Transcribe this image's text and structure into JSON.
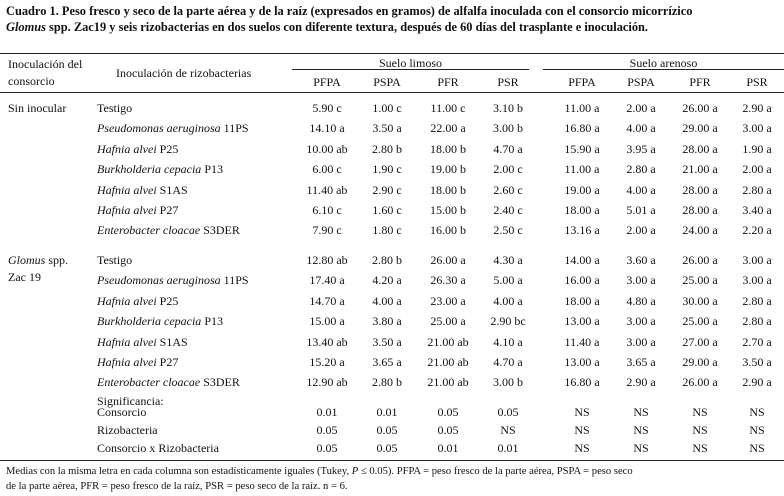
{
  "caption": {
    "line1": "Cuadro 1. Peso fresco y seco de la parte aérea y de la raíz (expresados en gramos) de alfalfa inoculada con el consorcio micorrízico",
    "line2_genus": "Glomus",
    "line2_rest": " spp. Zac19 y seis rizobacterias en dos suelos con diferente textura, después de 60 días del trasplante e inoculación."
  },
  "header": {
    "col1_line1": "Inoculación del",
    "col1_line2": "consorcio",
    "col2": "Inoculación de rizobacterias",
    "group1": "Suelo limoso",
    "group2": "Suelo arenoso",
    "vars": [
      "PFPA",
      "PSPA",
      "PFR",
      "PSR",
      "PFPA",
      "PSPA",
      "PFR",
      "PSR"
    ]
  },
  "groups": [
    {
      "label_line1": "Sin inocular",
      "label_line2": "",
      "rows": [
        {
          "name": "Testigo",
          "suffix": "",
          "values": [
            "5.90 c",
            "1.00 c",
            "11.00 c",
            "3.10 b",
            "11.00 a",
            "2.00 a",
            "26.00 a",
            "2.90 a"
          ]
        },
        {
          "name": "Pseudomonas aeruginosa",
          "suffix": "11PS",
          "values": [
            "14.10 a",
            "3.50 a",
            "22.00 a",
            "3.00 b",
            "16.80 a",
            "4.00 a",
            "29.00 a",
            "3.00 a"
          ]
        },
        {
          "name": "Hafnia alvei",
          "suffix": "P25",
          "values": [
            "10.00 ab",
            "2.80 b",
            "18.00 b",
            "4.70 a",
            "15.90 a",
            "3.95 a",
            "28.00 a",
            "1.90 a"
          ]
        },
        {
          "name": "Burkholderia cepacia",
          "suffix": "P13",
          "values": [
            "6.00 c",
            "1.90 c",
            "19.00 b",
            "2.00 c",
            "11.00 a",
            "2.80 a",
            "21.00 a",
            "2.00 a"
          ]
        },
        {
          "name": "Hafnia alvei",
          "suffix": "S1AS",
          "values": [
            "11.40 ab",
            "2.90 c",
            "18.00 b",
            "2.60 c",
            "19.00 a",
            "4.00 a",
            "28.00 a",
            "2.80 a"
          ]
        },
        {
          "name": "Hafnia alvei",
          "suffix": "P27",
          "values": [
            "6.10 c",
            "1.60 c",
            "15.00 b",
            "2.40 c",
            "18.00 a",
            "5.01 a",
            "28.00 a",
            "3.40 a"
          ]
        },
        {
          "name": "Enterobacter cloacae",
          "suffix": "S3DER",
          "values": [
            "7.90 c",
            "1.80 c",
            "16.00 b",
            "2.50 c",
            "13.16 a",
            "2.00 a",
            "24.00 a",
            "2.20 a"
          ]
        }
      ]
    },
    {
      "label_line1": "Glomus spp.",
      "label_line2": "Zac 19",
      "rows": [
        {
          "name": "Testigo",
          "suffix": "",
          "values": [
            "12.80 ab",
            "2.80 b",
            "26.00 a",
            "4.30 a",
            "14.00 a",
            "3.60 a",
            "26.00 a",
            "3.00 a"
          ]
        },
        {
          "name": "Pseudomonas aeruginosa",
          "suffix": "11PS",
          "values": [
            "17.40 a",
            "4.20 a",
            "26.30 a",
            "5.00 a",
            "16.00 a",
            "3.00 a",
            "25.00 a",
            "3.00 a"
          ]
        },
        {
          "name": "Hafnia alvei",
          "suffix": "P25",
          "values": [
            "14.70 a",
            "4.00 a",
            "23.00 a",
            "4.00 a",
            "18.00 a",
            "4.80 a",
            "30.00 a",
            "2.80 a"
          ]
        },
        {
          "name": "Burkholderia cepacia",
          "suffix": "P13",
          "values": [
            "15.00 a",
            "3.80 a",
            "25.00 a",
            "2.90 bc",
            "13.00 a",
            "3.00 a",
            "25.00 a",
            "2.80 a"
          ]
        },
        {
          "name": "Hafnia alvei",
          "suffix": "S1AS",
          "values": [
            "13.40 ab",
            "3.50 a",
            "21.00 ab",
            "4.10 a",
            "11.40 a",
            "3.00 a",
            "27.00 a",
            "2.70 a"
          ]
        },
        {
          "name": "Hafnia alvei",
          "suffix": "P27",
          "values": [
            "15.20 a",
            "3.65 a",
            "21.00 ab",
            "4.70 a",
            "13.00 a",
            "3.65 a",
            "29.00 a",
            "3.50 a"
          ]
        },
        {
          "name": "Enterobacter cloacae",
          "suffix": "S3DER",
          "values": [
            "12.90 ab",
            "2.80 b",
            "21.00 ab",
            "3.00 b",
            "16.80 a",
            "2.90 a",
            "26.00 a",
            "2.90 a"
          ]
        }
      ]
    }
  ],
  "significance": {
    "title": "Significancia:",
    "rows": [
      {
        "label": "Consorcio",
        "values": [
          "0.01",
          "0.01",
          "0.05",
          "0.05",
          "NS",
          "NS",
          "NS",
          "NS"
        ]
      },
      {
        "label": "Rizobacteria",
        "values": [
          "0.05",
          "0.05",
          "0.05",
          "NS",
          "NS",
          "NS",
          "NS",
          "NS"
        ]
      },
      {
        "label": "Consorcio x Rizobacteria",
        "values": [
          "0.05",
          "0.05",
          "0.01",
          "0.01",
          "NS",
          "NS",
          "NS",
          "NS"
        ]
      }
    ]
  },
  "footnote": {
    "line1_a": "Medias con la misma letra en cada columna son estadísticamente iguales (Tukey, ",
    "line1_p": "P",
    "line1_b": " ≤ 0.05). PFPA = peso fresco de la parte aérea, PSPA = peso seco",
    "line2": "de la parte aérea, PFR = peso fresco de la raíz, PSR = peso seco de la raíz. n = 6."
  }
}
